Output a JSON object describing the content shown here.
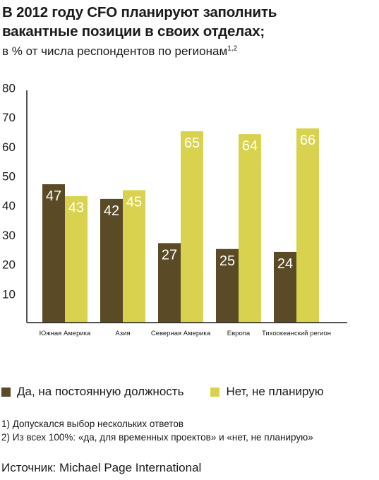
{
  "title_line1": "В 2012 году CFO планируют заполнить",
  "title_line2": "вакантные позиции в своих отделах;",
  "subtitle": "в % от числа респондентов по регионам",
  "subtitle_sup": "1,2",
  "chart_data": {
    "type": "bar",
    "categories": [
      "Южная Америка",
      "Азия",
      "Северная Америка",
      "Европа",
      "Тихоокеанский регион"
    ],
    "series": [
      {
        "name": "Да, на постоянную должность",
        "color": "#5a4a25",
        "values": [
          47,
          42,
          27,
          25,
          24
        ]
      },
      {
        "name": "Нет, не планирую",
        "color": "#d8d24f",
        "values": [
          43,
          45,
          65,
          64,
          66
        ]
      }
    ],
    "yticks": [
      10,
      20,
      30,
      40,
      50,
      60,
      70,
      80
    ],
    "ylim": [
      0,
      80
    ]
  },
  "legend": [
    {
      "label": "Да, на постоянную должность",
      "color": "#5a4a25"
    },
    {
      "label": "Нет, не планирую",
      "color": "#d8d24f"
    }
  ],
  "notes": [
    "1) Допускался выбор нескольких ответов",
    "2) Из всех 100%: «да, для временных проектов» и «нет, не планирую»"
  ],
  "source": "Источник: Michael Page International"
}
